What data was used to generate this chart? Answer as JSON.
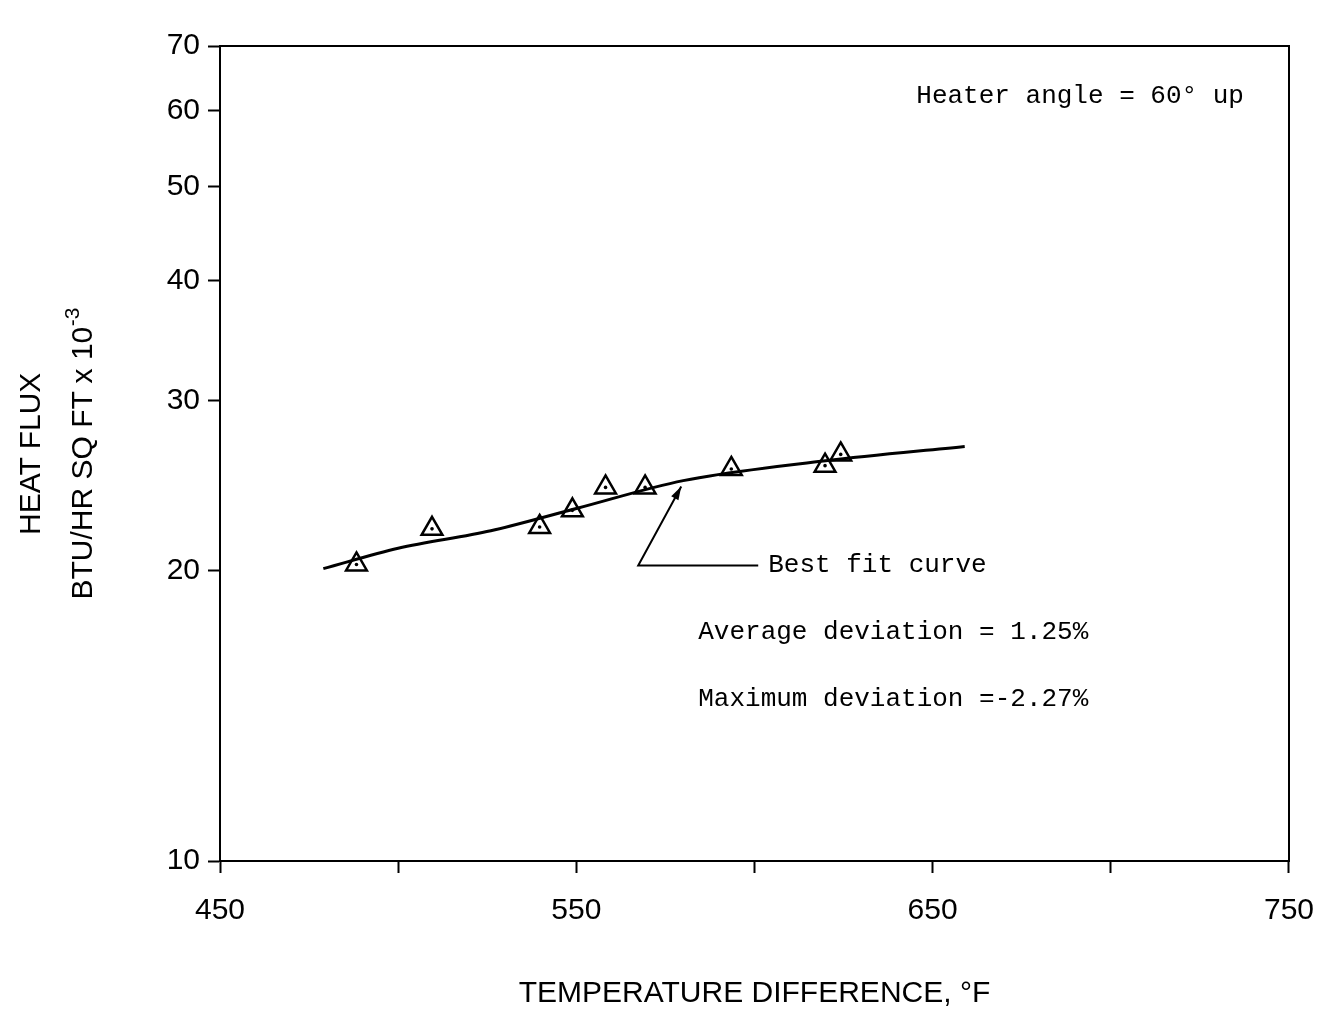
{
  "chart_data": {
    "type": "scatter",
    "xlabel": "TEMPERATURE DIFFERENCE, °F",
    "ylabel": "HEAT FLUX\nBTU/HR SQ FT x 10$^{-3}$",
    "log": "y",
    "grid": false,
    "legend": false,
    "marker": "triangle",
    "xlim": [
      450,
      750
    ],
    "xticks": [
      450,
      {
        "value": 500,
        "label": null
      },
      550,
      {
        "value": 600,
        "label": null
      },
      650,
      {
        "value": 700,
        "label": null
      },
      750
    ],
    "ylim": [
      10,
      70
    ],
    "yticks": [
      10,
      20,
      30,
      40,
      50,
      60,
      70
    ],
    "series": [
      {
        "color": "#000000",
        "x": [
          488.3,
          509.5,
          539.7,
          548.9,
          558.2,
          569.3,
          593.5,
          619.8,
          624.2
        ],
        "values": [
          20.3,
          22.1,
          22.2,
          23.1,
          24.4,
          24.4,
          25.5,
          25.7,
          26.4
        ]
      },
      {
        "type": "line",
        "color": "#000000",
        "marker": "none",
        "line_style": "solid",
        "x": [
          479,
          500,
          526,
          550,
          580,
          620,
          659
        ],
        "values": [
          20.1,
          21.1,
          22.0,
          23.2,
          24.8,
          26.0,
          26.9
        ]
      }
    ],
    "annotations": [
      "Heater angle = 60° up",
      {
        "text": "Best fit curve",
        "x": 580,
        "y": 24.8
      },
      "Average deviation = 1.25%",
      "Maximum deviation =-2.27%"
    ]
  }
}
